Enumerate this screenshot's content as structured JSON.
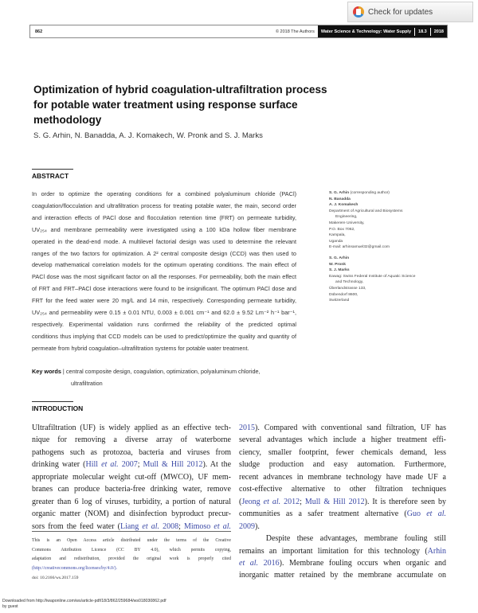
{
  "check_updates": {
    "label": "Check for updates",
    "icon": "crossmark-icon"
  },
  "header": {
    "page_number": "862",
    "copyright": "© 2018 The Authors",
    "journal": "Water Science & Technology: Water Supply",
    "volume": "18.3",
    "year": "2018"
  },
  "title_lines": [
    "Optimization of hybrid coagulation-ultrafiltration process",
    "for potable water treatment using response surface",
    "methodology"
  ],
  "authors": "S. G. Arhin, N. Banadda, A. J. Komakech, W. Pronk and S. J. Marks",
  "abstract": {
    "heading": "ABSTRACT",
    "lines": [
      "In order to optimize the operating conditions for a combined polyaluminum chloride (PACl)",
      "coagulation/flocculation and ultrafiltration process for treating potable water, the main, second order",
      "and interaction effects of PACl dose and flocculation retention time (FRT) on permeate turbidity,",
      "UV₂₅₄ and membrane permeability were investigated using a 100 kDa hollow fiber membrane",
      "operated in the dead-end mode. A multilevel factorial design was used to determine the relevant",
      "ranges of the two factors for optimization. A 2² central composite design (CCD) was then used to",
      "develop mathematical correlation models for the optimum operating conditions. The main effect of",
      "PACl dose was the most significant factor on all the responses. For permeability, both the main effect",
      "of FRT and FRT–PACl dose interactions were found to be insignificant. The optimum PACl dose and",
      "FRT for the feed water were 20 mg/L and 14 min, respectively. Corresponding permeate turbidity,",
      "UV₂₅₄ and permeability were 0.15 ± 0.01 NTU, 0.003 ± 0.001 cm⁻¹ and 62.0 ± 9.52 Lm⁻² h⁻¹ bar⁻¹,",
      "respectively. Experimental validation runs confirmed the reliability of the predicted optimal",
      "conditions thus implying that CCD models can be used to predict/optimize the quality and quantity of",
      "permeate from hybrid coagulation–ultrafiltration systems for potable water treatment."
    ],
    "keywords_label": "Key words",
    "keywords_lines": [
      "central composite design, coagulation, optimization, polyaluminum chloride,",
      "ultrafiltration"
    ]
  },
  "affiliations": {
    "group1_names": [
      "S. G. Arhin",
      "N. Banadda",
      "A. J. Komakech"
    ],
    "group1_note": "(corresponding author)",
    "group1_lines": [
      "Department of Agricultural and Biosystems",
      "Engineering,",
      "Makerere University,",
      "P.O. Box 7062,",
      "Kampala,",
      "Uganda",
      "E-mail: arhinsamuel32@gmail.com"
    ],
    "group2_names": [
      "S. G. Arhin",
      "W. Pronk",
      "S. J. Marks"
    ],
    "group2_lines": [
      "Eawag: Swiss Federal Institute of Aquatic Science",
      "and Technology,",
      "Überlandstrasse 133,",
      "Dübendorf 8600,",
      "Switzerland"
    ]
  },
  "introduction": {
    "heading": "INTRODUCTION",
    "left_lines": [
      [
        {
          "t": "Ultrafiltration (UF) is widely applied as an effective tech-"
        }
      ],
      [
        {
          "t": "nique for removing a diverse array of waterborne"
        }
      ],
      [
        {
          "t": "pathogens such as protozoa, bacteria and viruses from"
        }
      ],
      [
        {
          "t": "drinking water ("
        },
        {
          "t": "Hill ",
          "l": 1
        },
        {
          "t": "et al.",
          "l": 1,
          "i": 1
        },
        {
          "t": " 2007",
          "l": 1
        },
        {
          "t": "; "
        },
        {
          "t": "Mull & Hill 2012",
          "l": 1
        },
        {
          "t": "). At the"
        }
      ],
      [
        {
          "t": "appropriate molecular weight cut-off (MWCO), UF mem-"
        }
      ],
      [
        {
          "t": "branes can produce bacteria-free drinking water, remove"
        }
      ],
      [
        {
          "t": "greater than 6 log of viruses, turbidity, a portion of natural"
        }
      ],
      [
        {
          "t": "organic matter (NOM) and disinfection byproduct precur-"
        }
      ],
      [
        {
          "t": "sors from the feed water ("
        },
        {
          "t": "Liang ",
          "l": 1
        },
        {
          "t": "et al.",
          "l": 1,
          "i": 1
        },
        {
          "t": " 2008",
          "l": 1
        },
        {
          "t": "; "
        },
        {
          "t": "Mimoso ",
          "l": 1
        },
        {
          "t": "et al.",
          "l": 1,
          "i": 1
        }
      ]
    ],
    "right_lines": [
      [
        {
          "t": "2015",
          "l": 1
        },
        {
          "t": "). Compared with conventional sand filtration, UF has"
        }
      ],
      [
        {
          "t": "several advantages which include a higher treatment effi-"
        }
      ],
      [
        {
          "t": "ciency, smaller footprint, fewer chemicals demand, less"
        }
      ],
      [
        {
          "t": "sludge production and easy automation. Furthermore,"
        }
      ],
      [
        {
          "t": "recent advances in membrane technology have made UF a"
        }
      ],
      [
        {
          "t": "cost-effective alternative to other filtration techniques"
        }
      ],
      [
        {
          "t": "("
        },
        {
          "t": "Jeong ",
          "l": 1
        },
        {
          "t": "et al.",
          "l": 1,
          "i": 1
        },
        {
          "t": " 2012",
          "l": 1
        },
        {
          "t": "; "
        },
        {
          "t": "Mull & Hill 2012",
          "l": 1
        },
        {
          "t": "). It is therefore seen by"
        }
      ],
      [
        {
          "t": "communities as a safer treatment alternative ("
        },
        {
          "t": "Guo ",
          "l": 1
        },
        {
          "t": "et al.",
          "l": 1,
          "i": 1
        }
      ],
      [
        {
          "t": "2009",
          "l": 1
        },
        {
          "t": ")."
        }
      ],
      [
        {
          "t": "    Despite these advantages, membrane fouling still"
        }
      ],
      [
        {
          "t": "remains an important limitation for this technology ("
        },
        {
          "t": "Arhin",
          "l": 1
        }
      ],
      [
        {
          "t": "et al.",
          "l": 1,
          "i": 1
        },
        {
          "t": " 2016",
          "l": 1
        },
        {
          "t": "). Membrane fouling occurs when organic and"
        }
      ],
      [
        {
          "t": "inorganic matter retained by the membrane accumulate on"
        }
      ]
    ]
  },
  "footnote": {
    "lines": [
      "This is an Open Access article distributed under the terms of the Creative",
      "Commons Attribution Licence (CC BY 4.0), which permits copying,",
      "adaptation and redistribution, provided the original work is properly cited"
    ],
    "link": "(http://creativecommons.org/licenses/by/4.0/).",
    "doi": "doi: 10.2166/ws.2017.159"
  },
  "download_note": {
    "line1": "Downloaded from http://iwaponline.com/ws/article-pdf/18/3/862/259684/ws018030862.pdf",
    "line2": "by guest"
  }
}
